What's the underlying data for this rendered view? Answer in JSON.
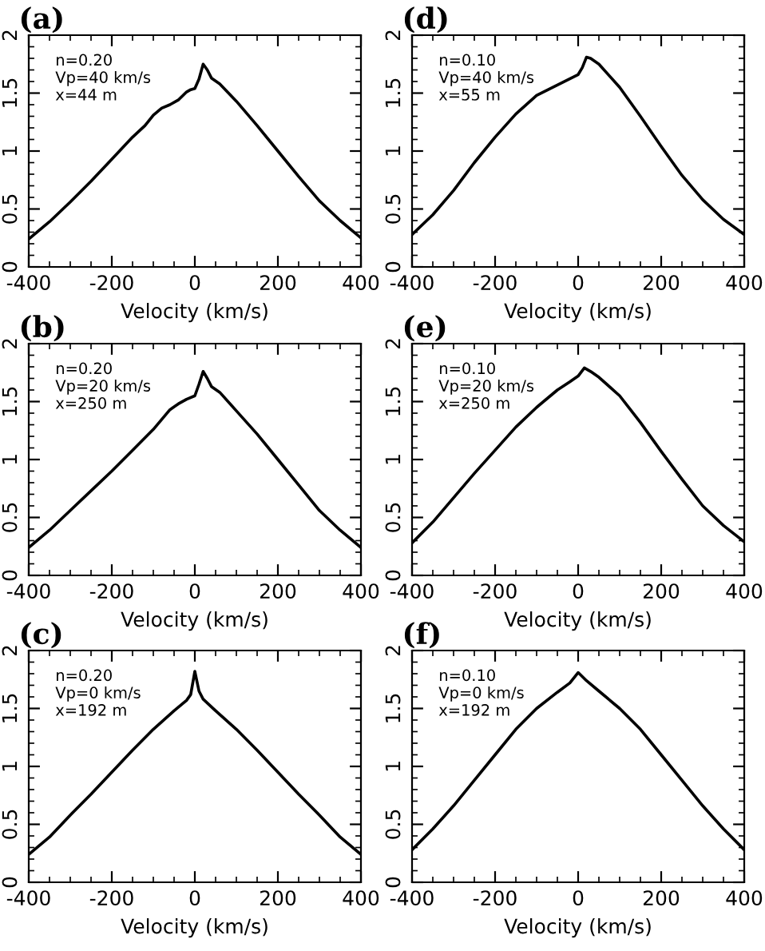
{
  "chart_data": [
    {
      "type": "line",
      "title": "(a)",
      "xlabel": "Velocity (km/s)",
      "annotations": [
        "n=0.20",
        "Vp=40 km/s",
        "x=44 m"
      ],
      "color": "#000000",
      "xlim": [
        -400,
        400
      ],
      "ylim": [
        0,
        2
      ],
      "xticks": [
        -400,
        -200,
        0,
        200,
        400
      ],
      "yticks": [
        0,
        0.5,
        1,
        1.5,
        2
      ],
      "x": [
        -400,
        -350,
        -300,
        -250,
        -200,
        -150,
        -120,
        -100,
        -80,
        -60,
        -40,
        -20,
        -10,
        0,
        10,
        20,
        30,
        40,
        60,
        100,
        150,
        200,
        250,
        300,
        350,
        400
      ],
      "values": [
        0.24,
        0.39,
        0.56,
        0.74,
        0.93,
        1.12,
        1.22,
        1.31,
        1.37,
        1.4,
        1.44,
        1.51,
        1.53,
        1.54,
        1.62,
        1.75,
        1.7,
        1.63,
        1.58,
        1.43,
        1.22,
        1.0,
        0.78,
        0.57,
        0.4,
        0.25
      ]
    },
    {
      "type": "line",
      "title": "(b)",
      "xlabel": "Velocity (km/s)",
      "annotations": [
        "n=0.20",
        "Vp=20 km/s",
        "x=250 m"
      ],
      "color": "#000000",
      "xlim": [
        -400,
        400
      ],
      "ylim": [
        0,
        2
      ],
      "xticks": [
        -400,
        -200,
        0,
        200,
        400
      ],
      "yticks": [
        0,
        0.5,
        1,
        1.5,
        2
      ],
      "x": [
        -400,
        -350,
        -300,
        -250,
        -200,
        -150,
        -100,
        -60,
        -40,
        -20,
        0,
        10,
        20,
        30,
        40,
        60,
        100,
        150,
        200,
        250,
        300,
        350,
        400
      ],
      "values": [
        0.24,
        0.39,
        0.56,
        0.73,
        0.9,
        1.08,
        1.26,
        1.43,
        1.48,
        1.52,
        1.55,
        1.65,
        1.76,
        1.7,
        1.63,
        1.58,
        1.42,
        1.22,
        1.0,
        0.78,
        0.56,
        0.39,
        0.24
      ]
    },
    {
      "type": "line",
      "title": "(c)",
      "xlabel": "Velocity (km/s)",
      "annotations": [
        "n=0.20",
        "Vp=0 km/s",
        "x=192 m"
      ],
      "color": "#000000",
      "xlim": [
        -400,
        400
      ],
      "ylim": [
        0,
        2
      ],
      "xticks": [
        -400,
        -200,
        0,
        200,
        400
      ],
      "yticks": [
        0,
        0.5,
        1,
        1.5,
        2
      ],
      "x": [
        -400,
        -350,
        -300,
        -250,
        -200,
        -150,
        -100,
        -50,
        -20,
        -10,
        0,
        10,
        20,
        50,
        100,
        150,
        200,
        250,
        300,
        350,
        400
      ],
      "values": [
        0.24,
        0.39,
        0.58,
        0.76,
        0.95,
        1.14,
        1.32,
        1.48,
        1.57,
        1.62,
        1.82,
        1.65,
        1.58,
        1.48,
        1.32,
        1.14,
        0.95,
        0.76,
        0.58,
        0.39,
        0.24
      ]
    },
    {
      "type": "line",
      "title": "(d)",
      "xlabel": "Velocity (km/s)",
      "annotations": [
        "n=0.10",
        "Vp=40 km/s",
        "x=55 m"
      ],
      "color": "#000000",
      "xlim": [
        -400,
        400
      ],
      "ylim": [
        0,
        2
      ],
      "xticks": [
        -400,
        -200,
        0,
        200,
        400
      ],
      "yticks": [
        0,
        0.5,
        1,
        1.5,
        2
      ],
      "x": [
        -400,
        -350,
        -300,
        -250,
        -200,
        -150,
        -100,
        -50,
        0,
        10,
        20,
        30,
        50,
        100,
        150,
        200,
        250,
        300,
        350,
        400
      ],
      "values": [
        0.28,
        0.45,
        0.66,
        0.9,
        1.12,
        1.32,
        1.48,
        1.57,
        1.66,
        1.72,
        1.81,
        1.8,
        1.75,
        1.55,
        1.3,
        1.04,
        0.79,
        0.58,
        0.41,
        0.28
      ]
    },
    {
      "type": "line",
      "title": "(e)",
      "xlabel": "Velocity (km/s)",
      "annotations": [
        "n=0.10",
        "Vp=20 km/s",
        "x=250 m"
      ],
      "color": "#000000",
      "xlim": [
        -400,
        400
      ],
      "ylim": [
        0,
        2
      ],
      "xticks": [
        -400,
        -200,
        0,
        200,
        400
      ],
      "yticks": [
        0,
        0.5,
        1,
        1.5,
        2
      ],
      "x": [
        -400,
        -350,
        -300,
        -250,
        -200,
        -150,
        -100,
        -50,
        -20,
        0,
        15,
        30,
        50,
        100,
        150,
        200,
        250,
        300,
        350,
        400
      ],
      "values": [
        0.28,
        0.46,
        0.67,
        0.88,
        1.08,
        1.28,
        1.45,
        1.6,
        1.67,
        1.72,
        1.79,
        1.76,
        1.71,
        1.55,
        1.32,
        1.07,
        0.83,
        0.6,
        0.43,
        0.29
      ]
    },
    {
      "type": "line",
      "title": "(f)",
      "xlabel": "Velocity (km/s)",
      "annotations": [
        "n=0.10",
        "Vp=0 km/s",
        "x=192 m"
      ],
      "color": "#000000",
      "xlim": [
        -400,
        400
      ],
      "ylim": [
        0,
        2
      ],
      "xticks": [
        -400,
        -200,
        0,
        200,
        400
      ],
      "yticks": [
        0,
        0.5,
        1,
        1.5,
        2
      ],
      "x": [
        -400,
        -350,
        -300,
        -250,
        -200,
        -150,
        -100,
        -50,
        -20,
        0,
        20,
        50,
        100,
        150,
        200,
        250,
        300,
        350,
        400
      ],
      "values": [
        0.28,
        0.46,
        0.66,
        0.88,
        1.1,
        1.32,
        1.5,
        1.64,
        1.72,
        1.81,
        1.74,
        1.65,
        1.5,
        1.32,
        1.1,
        0.88,
        0.66,
        0.46,
        0.28
      ]
    }
  ]
}
